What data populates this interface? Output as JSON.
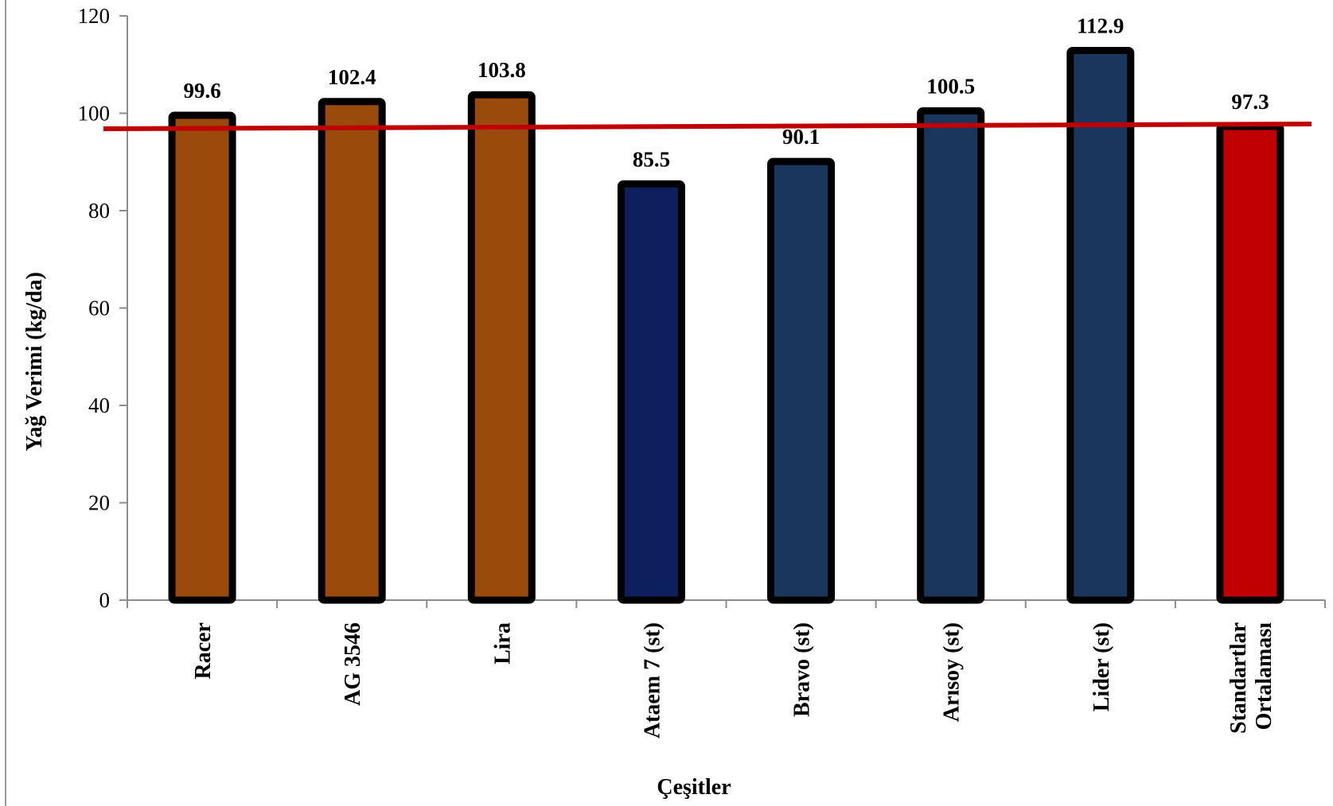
{
  "chart_data": {
    "type": "bar",
    "title": "",
    "xlabel": "Çeşitler",
    "ylabel": "Yağ Verimi (kg/da)",
    "ylim": [
      0,
      120
    ],
    "yticks": [
      "0",
      "20",
      "40",
      "60",
      "80",
      "100",
      "120"
    ],
    "categories": [
      [
        "Racer"
      ],
      [
        "AG 3546"
      ],
      [
        "Lira"
      ],
      [
        "Ataem 7 (st)"
      ],
      [
        "Bravo (st)"
      ],
      [
        "Arısoy (st)"
      ],
      [
        "Lider (st)"
      ],
      [
        "Standartlar",
        "Ortalaması"
      ]
    ],
    "values": [
      99.6,
      102.4,
      103.8,
      85.5,
      90.1,
      100.5,
      112.9,
      97.3
    ],
    "data_labels": [
      "99.6",
      "102.4",
      "103.8",
      "85.5",
      "90.1",
      "100.5",
      "112.9",
      "97.3"
    ],
    "bar_colors": [
      "#9a4a0a",
      "#9a4a0a",
      "#9a4a0a",
      "#0d1f5c",
      "#1b365d",
      "#1b365d",
      "#1b365d",
      "#c00000"
    ],
    "bar_outline_color": "#000000",
    "reference_line": {
      "value": 97.3,
      "color": "#c00000"
    },
    "grid": false,
    "legend": "none"
  }
}
